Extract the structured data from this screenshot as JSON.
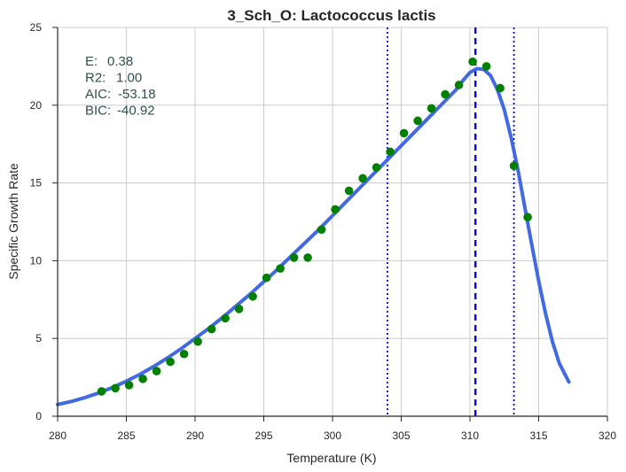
{
  "chart_data": {
    "type": "scatter",
    "title": "3_Sch_O: Lactococcus lactis",
    "xlabel": "Temperature (K)",
    "ylabel": "Specific Growth Rate",
    "xlim": [
      280,
      320
    ],
    "ylim": [
      0,
      25
    ],
    "xticks": [
      280,
      285,
      290,
      295,
      300,
      305,
      310,
      315,
      320
    ],
    "yticks": [
      0,
      5,
      10,
      15,
      20,
      25
    ],
    "grid": true,
    "annotations": [
      {
        "label": "E:",
        "value": "0.38"
      },
      {
        "label": "R2:",
        "value": "1.00"
      },
      {
        "label": "AIC:",
        "value": "-53.18"
      },
      {
        "label": "BIC:",
        "value": "-40.92"
      }
    ],
    "scatter_series": {
      "color": "#008000",
      "points": [
        [
          283.2,
          1.6
        ],
        [
          284.2,
          1.8
        ],
        [
          285.2,
          2.0
        ],
        [
          286.2,
          2.4
        ],
        [
          287.2,
          2.9
        ],
        [
          288.2,
          3.5
        ],
        [
          289.2,
          4.0
        ],
        [
          290.2,
          4.8
        ],
        [
          291.2,
          5.6
        ],
        [
          292.2,
          6.3
        ],
        [
          293.2,
          6.9
        ],
        [
          294.2,
          7.7
        ],
        [
          295.2,
          8.9
        ],
        [
          296.2,
          9.5
        ],
        [
          297.2,
          10.2
        ],
        [
          298.2,
          10.2
        ],
        [
          299.2,
          12.0
        ],
        [
          300.2,
          13.3
        ],
        [
          301.2,
          14.5
        ],
        [
          302.2,
          15.3
        ],
        [
          303.2,
          16.0
        ],
        [
          304.2,
          17.0
        ],
        [
          305.2,
          18.2
        ],
        [
          306.2,
          19.0
        ],
        [
          307.2,
          19.8
        ],
        [
          308.2,
          20.7
        ],
        [
          309.2,
          21.3
        ],
        [
          310.2,
          22.8
        ],
        [
          311.2,
          22.5
        ],
        [
          312.2,
          21.1
        ],
        [
          313.2,
          16.1
        ],
        [
          314.2,
          12.8
        ]
      ]
    },
    "fit_series": {
      "color": "#4169E1",
      "points": [
        [
          280.0,
          0.75
        ],
        [
          281.0,
          0.95
        ],
        [
          282.0,
          1.2
        ],
        [
          283.0,
          1.5
        ],
        [
          284.0,
          1.85
        ],
        [
          285.0,
          2.25
        ],
        [
          286.0,
          2.7
        ],
        [
          287.0,
          3.2
        ],
        [
          288.0,
          3.75
        ],
        [
          289.0,
          4.35
        ],
        [
          290.0,
          5.0
        ],
        [
          291.0,
          5.65
        ],
        [
          292.0,
          6.35
        ],
        [
          293.0,
          7.1
        ],
        [
          294.0,
          7.85
        ],
        [
          295.0,
          8.65
        ],
        [
          296.0,
          9.45
        ],
        [
          297.0,
          10.3
        ],
        [
          298.0,
          11.15
        ],
        [
          299.0,
          12.0
        ],
        [
          300.0,
          12.9
        ],
        [
          301.0,
          13.8
        ],
        [
          302.0,
          14.7
        ],
        [
          303.0,
          15.6
        ],
        [
          304.0,
          16.5
        ],
        [
          305.0,
          17.4
        ],
        [
          306.0,
          18.3
        ],
        [
          307.0,
          19.2
        ],
        [
          308.0,
          20.1
        ],
        [
          309.0,
          21.0
        ],
        [
          309.5,
          21.6
        ],
        [
          310.0,
          22.1
        ],
        [
          310.5,
          22.35
        ],
        [
          311.0,
          22.3
        ],
        [
          311.5,
          21.9
        ],
        [
          312.0,
          21.0
        ],
        [
          312.5,
          19.7
        ],
        [
          313.0,
          17.9
        ],
        [
          313.5,
          15.8
        ],
        [
          314.0,
          13.4
        ],
        [
          314.5,
          11.0
        ],
        [
          315.0,
          8.7
        ],
        [
          315.5,
          6.6
        ],
        [
          316.0,
          4.8
        ],
        [
          316.5,
          3.4
        ],
        [
          317.2,
          2.2
        ]
      ]
    },
    "vertical_lines": [
      {
        "x": 304.0,
        "style": "dotted",
        "color": "#0000FF"
      },
      {
        "x": 310.4,
        "style": "dashed",
        "color": "#0000FF"
      },
      {
        "x": 313.2,
        "style": "dotted",
        "color": "#0000FF"
      }
    ]
  }
}
